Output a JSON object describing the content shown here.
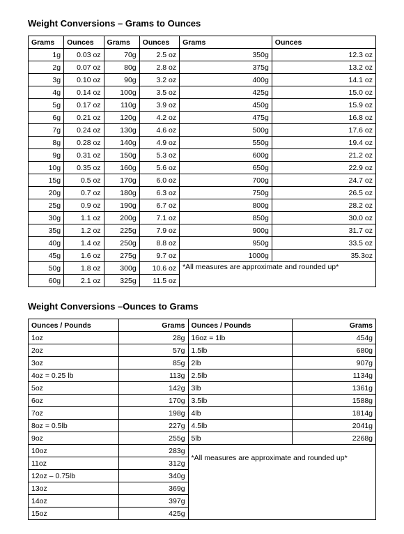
{
  "title1": "Weight Conversions – Grams to Ounces",
  "title2": "Weight Conversions –Ounces to Grams",
  "t1": {
    "headers": [
      "Grams",
      "Ounces",
      "Grams",
      "Ounces",
      "Grams",
      "Ounces"
    ],
    "rows": [
      [
        "1g",
        "0.03 oz",
        "70g",
        "2.5 oz",
        "350g",
        "12.3 oz"
      ],
      [
        "2g",
        "0.07 oz",
        "80g",
        "2.8 oz",
        "375g",
        "13.2 oz"
      ],
      [
        "3g",
        "0.10 oz",
        "90g",
        "3.2 oz",
        "400g",
        "14.1 oz"
      ],
      [
        "4g",
        "0.14 oz",
        "100g",
        "3.5 oz",
        "425g",
        "15.0 oz"
      ],
      [
        "5g",
        "0.17 oz",
        "110g",
        "3.9 oz",
        "450g",
        "15.9 oz"
      ],
      [
        "6g",
        "0.21 oz",
        "120g",
        "4.2 oz",
        "475g",
        "16.8 oz"
      ],
      [
        "7g",
        "0.24 oz",
        "130g",
        "4.6 oz",
        "500g",
        "17.6 oz"
      ],
      [
        "8g",
        "0.28 oz",
        "140g",
        "4.9 oz",
        "550g",
        "19.4 oz"
      ],
      [
        "9g",
        "0.31 oz",
        "150g",
        "5.3 oz",
        "600g",
        "21.2 oz"
      ],
      [
        "10g",
        "0.35 oz",
        "160g",
        "5.6 oz",
        "650g",
        "22.9 oz"
      ],
      [
        "15g",
        "0.5 oz",
        "170g",
        "6.0 oz",
        "700g",
        "24.7 oz"
      ],
      [
        "20g",
        "0.7 oz",
        "180g",
        "6.3 oz",
        "750g",
        "26.5 oz"
      ],
      [
        "25g",
        "0.9 oz",
        "190g",
        "6.7 oz",
        "800g",
        "28.2 oz"
      ],
      [
        "30g",
        "1.1 oz",
        "200g",
        "7.1 oz",
        "850g",
        "30.0 oz"
      ],
      [
        "35g",
        "1.2 oz",
        "225g",
        "7.9 oz",
        "900g",
        "31.7 oz"
      ],
      [
        "40g",
        "1.4 oz",
        "250g",
        "8.8 oz",
        "950g",
        "33.5 oz"
      ],
      [
        "45g",
        "1.6 oz",
        "275g",
        "9.7 oz",
        "1000g",
        "35.3oz"
      ]
    ],
    "row18": [
      "50g",
      "1.8 oz",
      "300g",
      "10.6 oz"
    ],
    "row19": [
      "60g",
      "2.1 oz",
      "325g",
      "11.5 oz"
    ],
    "note": "*All measures are approximate and rounded up*"
  },
  "t2": {
    "headers": [
      "Ounces / Pounds",
      "Grams",
      "Ounces / Pounds",
      "Grams"
    ],
    "top": [
      [
        "1oz",
        "28g",
        "16oz = 1lb",
        "454g"
      ],
      [
        "2oz",
        "57g",
        "1.5lb",
        "680g"
      ],
      [
        "3oz",
        "85g",
        "2lb",
        "907g"
      ],
      [
        "4oz = 0.25 lb",
        "113g",
        "2.5lb",
        "1134g"
      ],
      [
        "5oz",
        "142g",
        "3lb",
        "1361g"
      ],
      [
        "6oz",
        "170g",
        "3.5lb",
        "1588g"
      ],
      [
        "7oz",
        "198g",
        "4lb",
        "1814g"
      ],
      [
        "8oz = 0.5lb",
        "227g",
        "4.5lb",
        "2041g"
      ],
      [
        "9oz",
        "255g",
        "5lb",
        "2268g"
      ]
    ],
    "row10": [
      "10oz",
      "283g"
    ],
    "bottom": [
      [
        "11oz",
        "312g"
      ],
      [
        "12oz – 0.75lb",
        "340g"
      ],
      [
        "13oz",
        "369g"
      ],
      [
        "14oz",
        "397g"
      ],
      [
        "15oz",
        "425g"
      ]
    ],
    "note": "*All measures are approximate and rounded up*"
  }
}
